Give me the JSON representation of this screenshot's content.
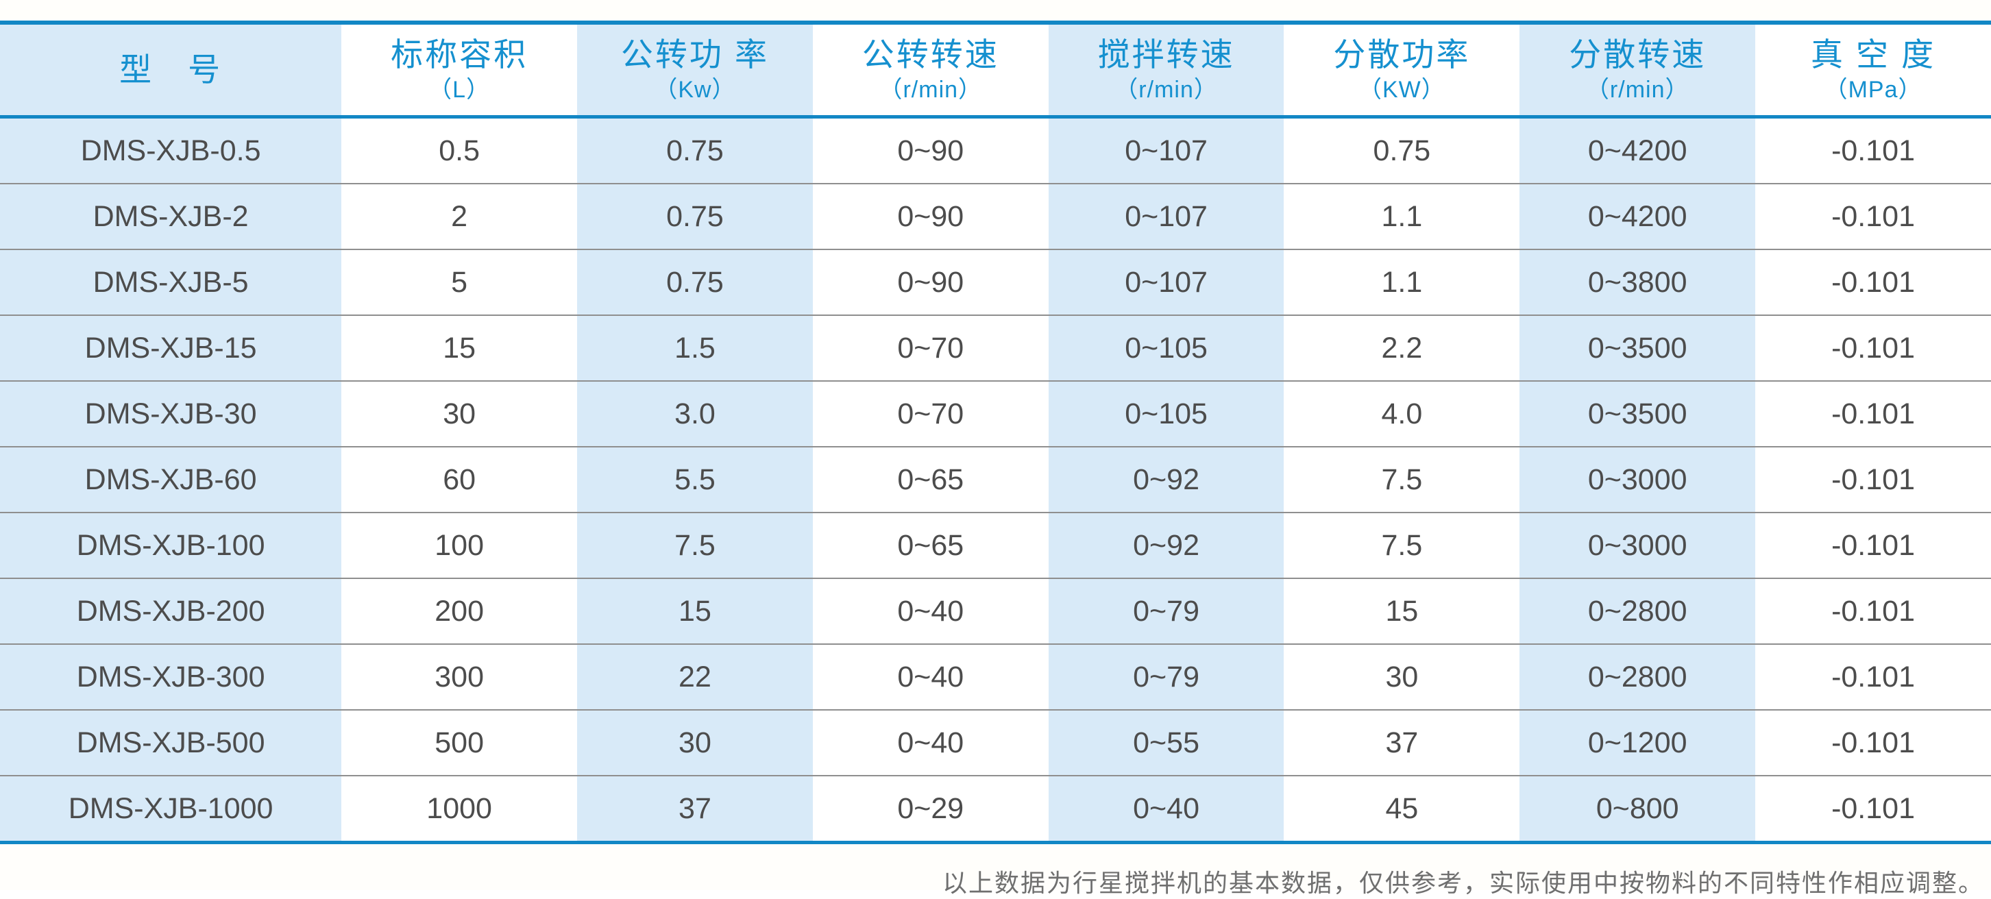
{
  "colors": {
    "accent_line": "#1287c5",
    "header_text": "#1590cf",
    "shaded_cell_bg": "#d8eaf8",
    "cell_text": "#4c4c4c",
    "row_divider": "#8f8f8f",
    "footer_text": "#6f6f6f"
  },
  "table": {
    "columns": [
      {
        "title": "型　号",
        "unit": "",
        "shaded": true
      },
      {
        "title": "标称容积",
        "unit": "（L）",
        "shaded": false
      },
      {
        "title": "公转功 率",
        "unit": "（Kw）",
        "shaded": true
      },
      {
        "title": "公转转速",
        "unit": "（r/min）",
        "shaded": false
      },
      {
        "title": "搅拌转速",
        "unit": "（r/min）",
        "shaded": true
      },
      {
        "title": "分散功率",
        "unit": "（KW）",
        "shaded": false
      },
      {
        "title": "分散转速",
        "unit": "（r/min）",
        "shaded": true
      },
      {
        "title": "真 空 度",
        "unit": "（MPa）",
        "shaded": false
      }
    ],
    "rows": [
      [
        "DMS-XJB-0.5",
        "0.5",
        "0.75",
        "0~90",
        "0~107",
        "0.75",
        "0~4200",
        "-0.101"
      ],
      [
        "DMS-XJB-2",
        "2",
        "0.75",
        "0~90",
        "0~107",
        "1.1",
        "0~4200",
        "-0.101"
      ],
      [
        "DMS-XJB-5",
        "5",
        "0.75",
        "0~90",
        "0~107",
        "1.1",
        "0~3800",
        "-0.101"
      ],
      [
        "DMS-XJB-15",
        "15",
        "1.5",
        "0~70",
        "0~105",
        "2.2",
        "0~3500",
        "-0.101"
      ],
      [
        "DMS-XJB-30",
        "30",
        "3.0",
        "0~70",
        "0~105",
        "4.0",
        "0~3500",
        "-0.101"
      ],
      [
        "DMS-XJB-60",
        "60",
        "5.5",
        "0~65",
        "0~92",
        "7.5",
        "0~3000",
        "-0.101"
      ],
      [
        "DMS-XJB-100",
        "100",
        "7.5",
        "0~65",
        "0~92",
        "7.5",
        "0~3000",
        "-0.101"
      ],
      [
        "DMS-XJB-200",
        "200",
        "15",
        "0~40",
        "0~79",
        "15",
        "0~2800",
        "-0.101"
      ],
      [
        "DMS-XJB-300",
        "300",
        "22",
        "0~40",
        "0~79",
        "30",
        "0~2800",
        "-0.101"
      ],
      [
        "DMS-XJB-500",
        "500",
        "30",
        "0~40",
        "0~55",
        "37",
        "0~1200",
        "-0.101"
      ],
      [
        "DMS-XJB-1000",
        "1000",
        "37",
        "0~29",
        "0~40",
        "45",
        "0~800",
        "-0.101"
      ]
    ]
  },
  "footer": {
    "note": "以上数据为行星搅拌机的基本数据，仅供参考，实际使用中按物料的不同特性作相应调整。"
  }
}
